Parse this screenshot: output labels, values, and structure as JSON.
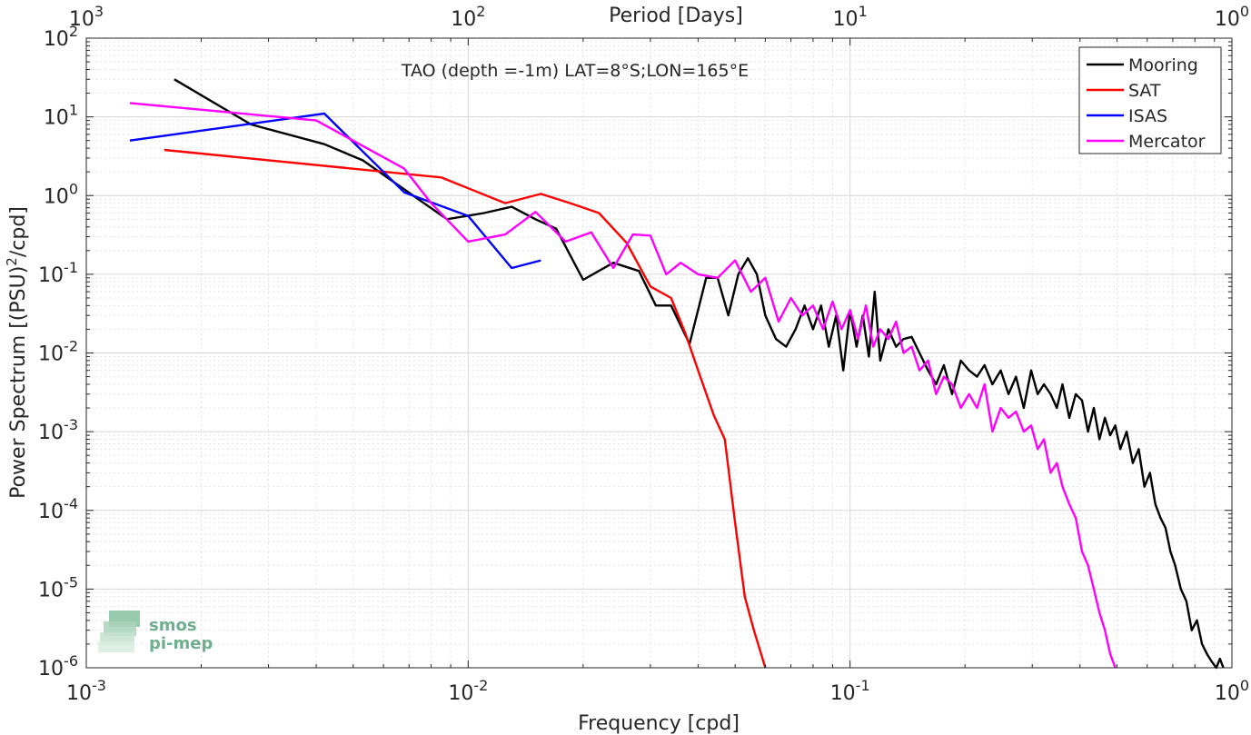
{
  "chart_data": {
    "type": "line",
    "title": "TAO (depth =-1m) LAT=8°S;LON=165°E",
    "xlabel": "Frequency [cpd]",
    "ylabel": "Power Spectrum [(PSU)²/cpd]",
    "ylabel_base": "Power Spectrum [(PSU)",
    "ylabel_sup": "2",
    "ylabel_tail": "/cpd]",
    "x2label": "Period [Days]",
    "xscale": "log",
    "yscale": "log",
    "xlim": [
      0.001,
      1
    ],
    "ylim": [
      1e-06,
      100
    ],
    "grid": true,
    "legend_position": "top-right",
    "x_ticks": [
      {
        "value": 0.001,
        "base": "10",
        "exp": "-3"
      },
      {
        "value": 0.01,
        "base": "10",
        "exp": "-2"
      },
      {
        "value": 0.1,
        "base": "10",
        "exp": "-1"
      },
      {
        "value": 1,
        "base": "10",
        "exp": "0"
      }
    ],
    "y_ticks": [
      {
        "value": 100,
        "base": "10",
        "exp": "2"
      },
      {
        "value": 10,
        "base": "10",
        "exp": "1"
      },
      {
        "value": 1,
        "base": "10",
        "exp": "0"
      },
      {
        "value": 0.1,
        "base": "10",
        "exp": "-1"
      },
      {
        "value": 0.01,
        "base": "10",
        "exp": "-2"
      },
      {
        "value": 0.001,
        "base": "10",
        "exp": "-3"
      },
      {
        "value": 0.0001,
        "base": "10",
        "exp": "-4"
      },
      {
        "value": 1e-05,
        "base": "10",
        "exp": "-5"
      },
      {
        "value": 1e-06,
        "base": "10",
        "exp": "-6"
      }
    ],
    "x2_ticks": [
      {
        "value": 0.001,
        "base": "10",
        "exp": "3"
      },
      {
        "value": 0.01,
        "base": "10",
        "exp": "2"
      },
      {
        "value": 0.1,
        "base": "10",
        "exp": "1"
      },
      {
        "value": 1,
        "base": "10",
        "exp": "0"
      }
    ],
    "series": [
      {
        "name": "Mooring",
        "color": "#000000",
        "x": [
          0.0017,
          0.0027,
          0.0042,
          0.0053,
          0.0068,
          0.0088,
          0.011,
          0.013,
          0.015,
          0.017,
          0.02,
          0.024,
          0.028,
          0.031,
          0.034,
          0.038,
          0.042,
          0.045,
          0.048,
          0.051,
          0.054,
          0.057,
          0.06,
          0.064,
          0.068,
          0.072,
          0.076,
          0.08,
          0.084,
          0.088,
          0.092,
          0.096,
          0.1,
          0.104,
          0.108,
          0.112,
          0.116,
          0.12,
          0.126,
          0.132,
          0.138,
          0.145,
          0.152,
          0.16,
          0.168,
          0.176,
          0.185,
          0.195,
          0.205,
          0.215,
          0.225,
          0.236,
          0.248,
          0.26,
          0.272,
          0.285,
          0.298,
          0.31,
          0.322,
          0.335,
          0.348,
          0.36,
          0.375,
          0.39,
          0.405,
          0.42,
          0.435,
          0.45,
          0.465,
          0.48,
          0.495,
          0.51,
          0.53,
          0.55,
          0.57,
          0.59,
          0.61,
          0.63,
          0.65,
          0.67,
          0.69,
          0.71,
          0.735,
          0.76,
          0.785,
          0.81,
          0.835,
          0.86,
          0.885,
          0.91,
          0.93,
          0.95
        ],
        "y": [
          30,
          8,
          4.5,
          2.8,
          1.2,
          0.5,
          0.6,
          0.72,
          0.5,
          0.38,
          0.085,
          0.14,
          0.11,
          0.04,
          0.04,
          0.013,
          0.09,
          0.09,
          0.03,
          0.1,
          0.16,
          0.1,
          0.03,
          0.015,
          0.012,
          0.02,
          0.04,
          0.02,
          0.04,
          0.012,
          0.03,
          0.006,
          0.035,
          0.012,
          0.03,
          0.009,
          0.06,
          0.008,
          0.02,
          0.012,
          0.015,
          0.016,
          0.01,
          0.006,
          0.004,
          0.007,
          0.003,
          0.008,
          0.006,
          0.005,
          0.007,
          0.004,
          0.006,
          0.003,
          0.005,
          0.002,
          0.006,
          0.003,
          0.004,
          0.003,
          0.002,
          0.004,
          0.0015,
          0.003,
          0.0025,
          0.001,
          0.002,
          0.0008,
          0.0015,
          0.0009,
          0.0012,
          0.0006,
          0.001,
          0.0004,
          0.0006,
          0.0002,
          0.0003,
          0.00012,
          8e-05,
          6e-05,
          3e-05,
          2e-05,
          1e-05,
          7e-06,
          3e-06,
          4e-06,
          2e-06,
          1.5e-06,
          1.2e-06,
          1e-06,
          1.3e-06,
          1e-06
        ]
      },
      {
        "name": "SAT",
        "color": "#ff0000",
        "x": [
          0.0016,
          0.0085,
          0.0125,
          0.0155,
          0.0185,
          0.022,
          0.026,
          0.03,
          0.034,
          0.037,
          0.04,
          0.044,
          0.047,
          0.05,
          0.053,
          0.056,
          0.06
        ],
        "y": [
          3.8,
          1.7,
          0.8,
          1.05,
          0.8,
          0.6,
          0.25,
          0.07,
          0.05,
          0.018,
          0.006,
          0.0016,
          0.0008,
          7e-05,
          8e-06,
          3e-06,
          1e-06
        ]
      },
      {
        "name": "ISAS",
        "color": "#0000ff",
        "x": [
          0.0013,
          0.0042,
          0.0068,
          0.01,
          0.013,
          0.0155
        ],
        "y": [
          5,
          11,
          1.1,
          0.55,
          0.12,
          0.15
        ]
      },
      {
        "name": "Mercator",
        "color": "#ff00ff",
        "x": [
          0.0013,
          0.004,
          0.0068,
          0.008,
          0.01,
          0.0125,
          0.015,
          0.018,
          0.021,
          0.024,
          0.027,
          0.03,
          0.033,
          0.036,
          0.04,
          0.045,
          0.05,
          0.055,
          0.06,
          0.065,
          0.07,
          0.075,
          0.08,
          0.085,
          0.09,
          0.095,
          0.1,
          0.105,
          0.11,
          0.115,
          0.12,
          0.126,
          0.132,
          0.138,
          0.145,
          0.152,
          0.16,
          0.168,
          0.176,
          0.185,
          0.195,
          0.205,
          0.215,
          0.225,
          0.236,
          0.248,
          0.26,
          0.272,
          0.285,
          0.298,
          0.31,
          0.322,
          0.335,
          0.348,
          0.36,
          0.375,
          0.39,
          0.405,
          0.42,
          0.435,
          0.45,
          0.465,
          0.48,
          0.495
        ],
        "y": [
          15,
          9,
          2.2,
          0.8,
          0.26,
          0.32,
          0.62,
          0.26,
          0.34,
          0.12,
          0.32,
          0.31,
          0.1,
          0.14,
          0.1,
          0.09,
          0.15,
          0.06,
          0.09,
          0.025,
          0.05,
          0.03,
          0.04,
          0.02,
          0.045,
          0.02,
          0.035,
          0.015,
          0.04,
          0.012,
          0.02,
          0.015,
          0.025,
          0.01,
          0.012,
          0.006,
          0.008,
          0.003,
          0.005,
          0.004,
          0.002,
          0.003,
          0.002,
          0.004,
          0.001,
          0.002,
          0.0015,
          0.0018,
          0.001,
          0.0012,
          0.0006,
          0.0008,
          0.0003,
          0.0004,
          0.0002,
          0.00012,
          8e-05,
          3e-05,
          2e-05,
          1e-05,
          5e-06,
          3e-06,
          1.5e-06,
          1e-06
        ]
      }
    ]
  },
  "logo": {
    "line1": "smos",
    "line2": "pi-mep",
    "color": "#6fae8e"
  }
}
